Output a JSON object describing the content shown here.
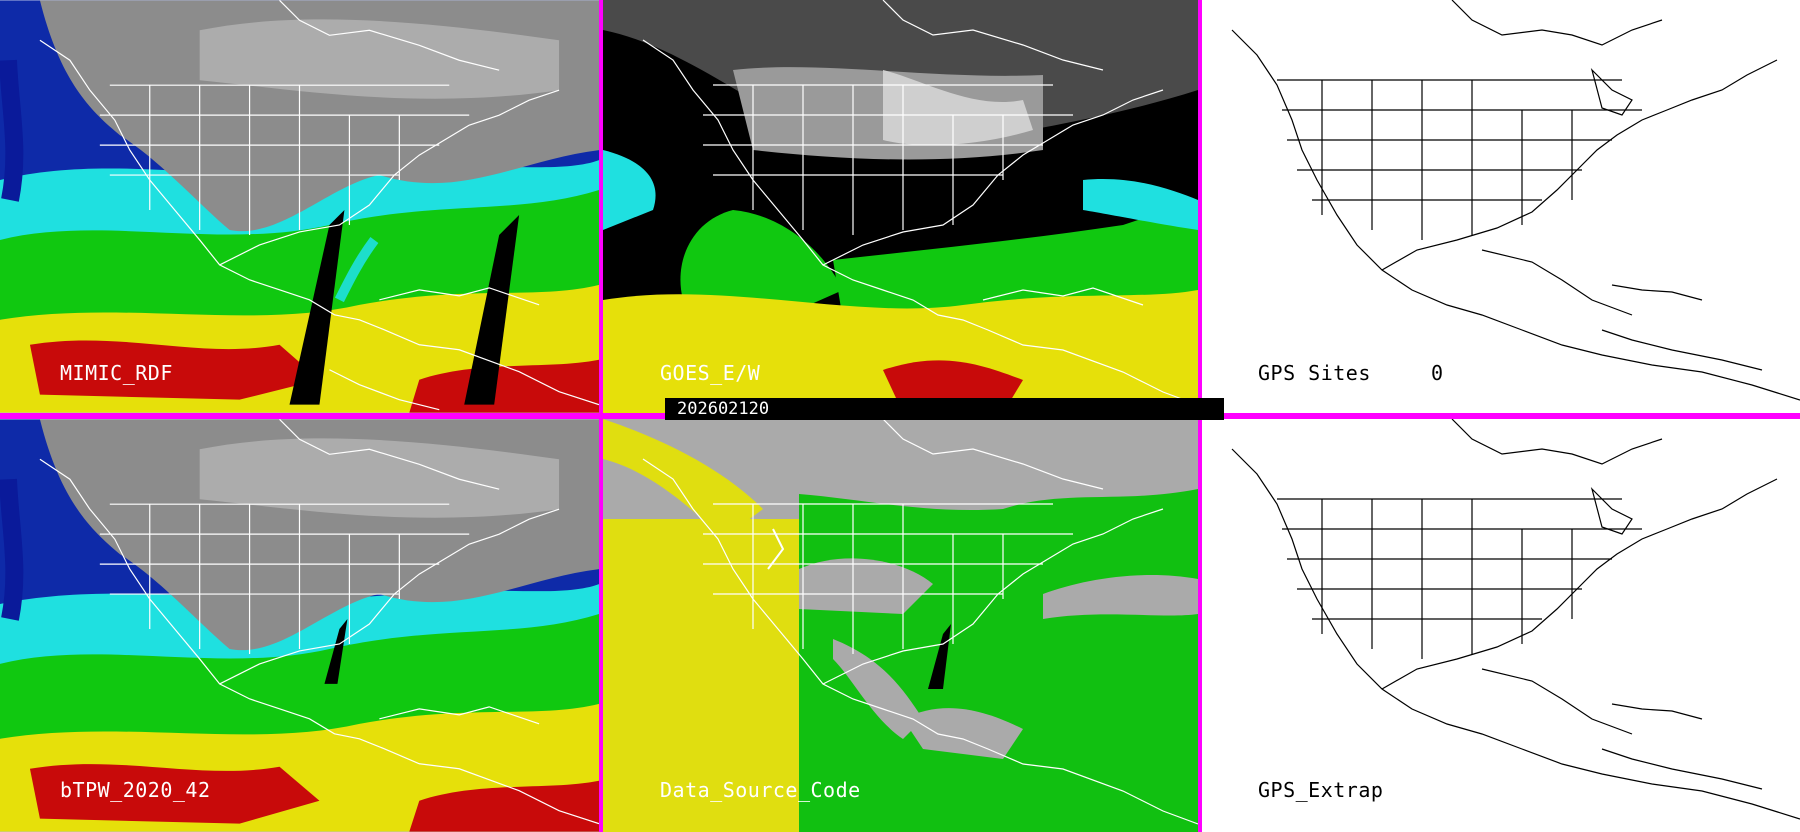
{
  "panels": [
    {
      "id": "mimic",
      "label": "MIMIC_RDF",
      "type": "tpw"
    },
    {
      "id": "goes",
      "label": "GOES_E/W",
      "type": "goes"
    },
    {
      "id": "gps",
      "label": "GPS Sites",
      "value": "0",
      "type": "outline"
    },
    {
      "id": "btpw",
      "label": "bTPW_2020_42",
      "type": "tpw"
    },
    {
      "id": "source",
      "label": "Data_Source_Code",
      "type": "source"
    },
    {
      "id": "extrap",
      "label": "GPS_Extrap",
      "type": "outline"
    }
  ],
  "timestamp": "202602120",
  "colors": {
    "divider": "#ff00ff",
    "dry_gray": "#8c8c8c",
    "navy": "#0a1a9a",
    "cyan": "#1fe0e0",
    "green": "#10c810",
    "yellow": "#e6e00a",
    "red": "#c80a0a",
    "source_gray": "#aaaaaa",
    "source_green": "#11c011",
    "source_yellow": "#e0de10"
  }
}
